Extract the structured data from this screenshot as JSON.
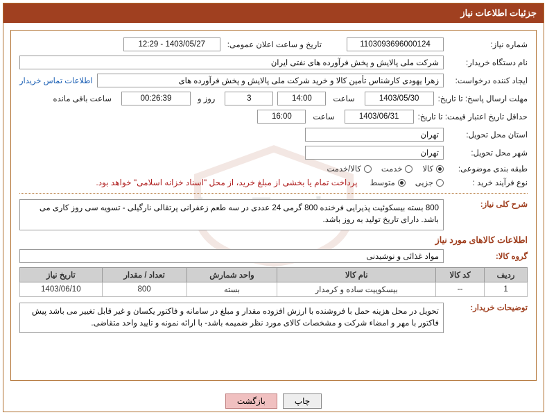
{
  "header": {
    "title": "جزئیات اطلاعات نیاز"
  },
  "fields": {
    "requestNo": {
      "label": "شماره نیاز:",
      "value": "1103093696000124"
    },
    "announceDate": {
      "label": "تاریخ و ساعت اعلان عمومی:",
      "value": "1403/05/27 - 12:29"
    },
    "buyerOrg": {
      "label": "نام دستگاه خریدار:",
      "value": "شرکت ملی پالایش و پخش فرآورده های نفتی ایران"
    },
    "requester": {
      "label": "ایجاد کننده درخواست:",
      "value": "زهرا یهودی کارشناس تأمین کالا و خرید شرکت ملی پالایش و پخش فرآورده های"
    },
    "contactLink": "اطلاعات تماس خریدار",
    "replyDeadline": {
      "label": "مهلت ارسال پاسخ: تا تاریخ:",
      "date": "1403/05/30",
      "timeLabel": "ساعت",
      "time": "14:00",
      "daysLabel": "روز و",
      "days": "3",
      "countdown": "00:26:39",
      "remainLabel": "ساعت باقی مانده"
    },
    "priceValidity": {
      "label": "حداقل تاریخ اعتبار قیمت: تا تاریخ:",
      "date": "1403/06/31",
      "timeLabel": "ساعت",
      "time": "16:00"
    },
    "deliveryProvince": {
      "label": "استان محل تحویل:",
      "value": "تهران"
    },
    "deliveryCity": {
      "label": "شهر محل تحویل:",
      "value": "تهران"
    },
    "subjectCategory": {
      "label": "طبقه بندی موضوعی:",
      "options": [
        {
          "label": "کالا",
          "checked": true
        },
        {
          "label": "خدمت",
          "checked": false
        },
        {
          "label": "کالا/خدمت",
          "checked": false
        }
      ]
    },
    "purchaseProcess": {
      "label": "نوع فرآیند خرید :",
      "options": [
        {
          "label": "جزیی",
          "checked": false
        },
        {
          "label": "متوسط",
          "checked": true
        }
      ],
      "note": "پرداخت تمام یا بخشی از مبلغ خرید، از محل \"اسناد خزانه اسلامی\" خواهد بود."
    },
    "generalDesc": {
      "label": "شرح کلی نیاز:",
      "value": "800 بسته بیسکوئیت پذیرایی  فرخنده 800 گرمی  24 عددی در سه طعم زعفرانی پرتقالی نارگیلی - تسویه سی روز کاری می باشد. دارای تاریخ تولید به روز باشد."
    },
    "itemsTitle": "اطلاعات کالاهای مورد نیاز",
    "goodsGroup": {
      "label": "گروه کالا:",
      "value": "مواد غذائی و نوشیدنی"
    },
    "table": {
      "headers": [
        "ردیف",
        "کد کالا",
        "نام کالا",
        "واحد شمارش",
        "تعداد / مقدار",
        "تاریخ نیاز"
      ],
      "rows": [
        [
          "1",
          "--",
          "بیسکوییت ساده و کرمدار",
          "بسته",
          "800",
          "1403/06/10"
        ]
      ]
    },
    "buyerNotes": {
      "label": "توضیحات خریدار:",
      "value": "تحویل در محل هزینه حمل با فروشنده با ارزش افزوده مقدار و مبلغ در سامانه و فاکتور یکسان و غیر قابل تغییر می باشد پیش فاکتور با مهر و امضاء شرکت و مشخصات کالای مورد نظر ضمیمه باشد- با ارائه نمونه و تایید واحد متقاضی."
    }
  },
  "buttons": {
    "print": "چاپ",
    "back": "بازگشت"
  },
  "colors": {
    "accent": "#a04020",
    "border": "#b07030",
    "link": "#1a5fb4",
    "red": "#b02020",
    "headerBg": "#d0d0d0",
    "btnBack": "#f0c0c0"
  }
}
